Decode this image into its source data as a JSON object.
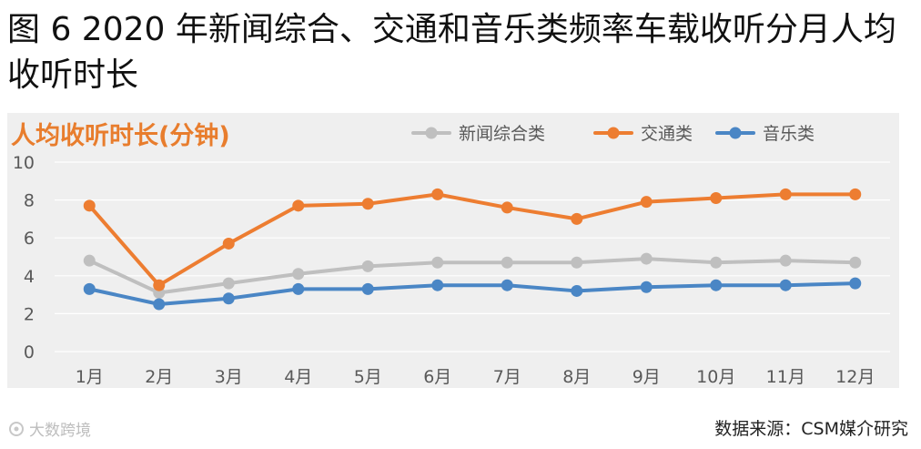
{
  "figure": {
    "title": "图 6   2020 年新闻综合、交通和音乐类频率车载收听分月人均收听时长",
    "source": "数据来源：CSM媒介研究",
    "watermark": "大数跨境",
    "watermark_icon": "brand-logo-icon"
  },
  "colors": {
    "plot_background": "#efefef",
    "chart_title": "#e87d2d",
    "axis_text": "#595959",
    "grid": "#ffffff"
  },
  "chart_data": {
    "type": "line",
    "title": "人均收听时长(分钟)",
    "xlabel": "",
    "ylabel": "",
    "ylim": [
      0,
      10
    ],
    "yticks": [
      "0",
      "2",
      "4",
      "6",
      "8",
      "10"
    ],
    "categories": [
      "1月",
      "2月",
      "3月",
      "4月",
      "5月",
      "6月",
      "7月",
      "8月",
      "9月",
      "10月",
      "11月",
      "12月"
    ],
    "grid": true,
    "legend_position": "top-right",
    "series": [
      {
        "name": "新闻综合类",
        "color": "#bfbfbf",
        "values": [
          4.8,
          3.1,
          3.6,
          4.1,
          4.5,
          4.7,
          4.7,
          4.7,
          4.9,
          4.7,
          4.8,
          4.7
        ]
      },
      {
        "name": "交通类",
        "color": "#ed7d31",
        "values": [
          7.7,
          3.5,
          5.7,
          7.7,
          7.8,
          8.3,
          7.6,
          7.0,
          7.9,
          8.1,
          8.3,
          8.3
        ]
      },
      {
        "name": "音乐类",
        "color": "#4a86c5",
        "values": [
          3.3,
          2.5,
          2.8,
          3.3,
          3.3,
          3.5,
          3.5,
          3.2,
          3.4,
          3.5,
          3.5,
          3.6
        ]
      }
    ]
  }
}
